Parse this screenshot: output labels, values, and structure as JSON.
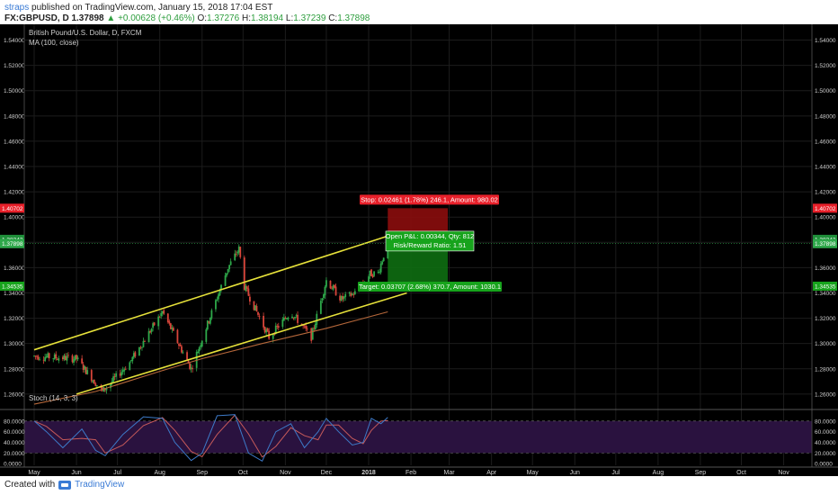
{
  "header": {
    "author": "straps",
    "published": "published on TradingView.com, January 15, 2018 17:04 EST",
    "symbol": "FX:GBPUSD, D",
    "price": "1.37898",
    "change": "▲ +0.00628 (+0.46%)",
    "o_label": "O:",
    "o_value": "1.37276",
    "h_label": "H:",
    "h_value": "1.38194",
    "l_label": "L:",
    "l_value": "1.37239",
    "c_label": "C:",
    "c_value": "1.37898"
  },
  "footer": {
    "created_with": "Created with",
    "brand": "TradingView"
  },
  "colors": {
    "background": "#000000",
    "up": "#2ea84a",
    "down": "#d8453a",
    "channel": "#e6e13a",
    "ma": "#b5673a",
    "stoch_fill": "#2a123f",
    "stoch_k": "#3d7ac8",
    "stoch_d": "#c65a5a",
    "stop_zone": "#8b0d0d",
    "target_zone": "#0e6e12",
    "label_red": "#e8202a",
    "label_green": "#17a31c"
  },
  "chart_data": [
    {
      "type": "candlestick",
      "title": "British Pound/U.S. Dollar, D, FXCM",
      "indicator_label": "MA (100, close)",
      "x_tick_labels": [
        "May",
        "Jun",
        "Jul",
        "Aug",
        "Sep",
        "Oct",
        "Nov",
        "Dec",
        "2018",
        "Feb",
        "Mar",
        "Apr",
        "May",
        "Jun",
        "Jul",
        "Aug",
        "Sep",
        "Oct",
        "Nov"
      ],
      "y_tick_labels": [
        "1.54000",
        "1.52000",
        "1.50000",
        "1.48000",
        "1.46000",
        "1.44000",
        "1.42000",
        "1.40000",
        "1.38000",
        "1.36000",
        "1.34000",
        "1.32000",
        "1.30000",
        "1.28000",
        "1.26000"
      ],
      "ylim": [
        1.2485,
        1.5525
      ],
      "marker_labels": [
        {
          "value": "1.40702",
          "kind": "stop"
        },
        {
          "value": "1.38242",
          "kind": "entry"
        },
        {
          "value": "1.37898",
          "kind": "current"
        },
        {
          "value": "1.34535",
          "kind": "target"
        }
      ],
      "key_points": [
        {
          "date": "2017-05-01",
          "close": 1.29
        },
        {
          "date": "2017-06-01",
          "close": 1.288
        },
        {
          "date": "2017-06-20",
          "close": 1.262
        },
        {
          "date": "2017-07-10",
          "close": 1.285
        },
        {
          "date": "2017-08-03",
          "close": 1.325
        },
        {
          "date": "2017-08-24",
          "close": 1.28
        },
        {
          "date": "2017-09-20",
          "close": 1.36
        },
        {
          "date": "2017-09-28",
          "close": 1.375
        },
        {
          "date": "2017-10-02",
          "close": 1.345
        },
        {
          "date": "2017-10-20",
          "close": 1.305
        },
        {
          "date": "2017-11-05",
          "close": 1.325
        },
        {
          "date": "2017-11-20",
          "close": 1.305
        },
        {
          "date": "2017-12-01",
          "close": 1.35
        },
        {
          "date": "2017-12-12",
          "close": 1.335
        },
        {
          "date": "2017-12-22",
          "close": 1.34
        },
        {
          "date": "2018-01-02",
          "close": 1.355
        },
        {
          "date": "2018-01-08",
          "close": 1.356
        },
        {
          "date": "2018-01-12",
          "close": 1.37
        },
        {
          "date": "2018-01-15",
          "close": 1.379
        }
      ],
      "moving_average": [
        {
          "date": "2017-05-01",
          "value": 1.252
        },
        {
          "date": "2017-06-15",
          "value": 1.262
        },
        {
          "date": "2017-08-01",
          "value": 1.278
        },
        {
          "date": "2017-09-01",
          "value": 1.288
        },
        {
          "date": "2017-10-15",
          "value": 1.3
        },
        {
          "date": "2017-12-01",
          "value": 1.312
        },
        {
          "date": "2018-01-15",
          "value": 1.325
        }
      ],
      "channel": {
        "upper": [
          {
            "date": "2017-05-01",
            "value": 1.295
          },
          {
            "date": "2018-01-15",
            "value": 1.385
          }
        ],
        "lower": [
          {
            "date": "2017-06-01",
            "value": 1.26
          },
          {
            "date": "2018-01-29",
            "value": 1.34
          }
        ]
      },
      "position": {
        "stop_text": "Stop: 0.02461 (1.78%) 246.1, Amount: 980.02",
        "pnl_text": "Open P&L: 0.00344, Qty: 812",
        "rr_text": "Risk/Reward Ratio: 1.51",
        "target_text": "Target: 0.03707 (2.68%) 370.7, Amount: 1030.1",
        "stop_price": 1.40702,
        "entry_price": 1.38242,
        "target_price": 1.34535,
        "start_date": "2018-01-15",
        "end_date": "2018-02-28"
      }
    },
    {
      "type": "line",
      "title": "Stoch (14, 3, 3)",
      "y_tick_labels": [
        "80.0000",
        "60.0000",
        "40.0000",
        "20.0000",
        "0.0000"
      ],
      "ylim": [
        -3,
        100
      ],
      "bands": [
        20,
        80
      ],
      "series": [
        {
          "values": [
            {
              "date": "2017-05-01",
              "k": 80
            },
            {
              "date": "2017-05-10",
              "k": 60
            },
            {
              "date": "2017-05-22",
              "k": 30
            },
            {
              "date": "2017-06-05",
              "k": 65
            },
            {
              "date": "2017-06-15",
              "k": 25
            },
            {
              "date": "2017-06-22",
              "k": 15
            },
            {
              "date": "2017-07-05",
              "k": 55
            },
            {
              "date": "2017-07-20",
              "k": 88
            },
            {
              "date": "2017-08-03",
              "k": 85
            },
            {
              "date": "2017-08-12",
              "k": 40
            },
            {
              "date": "2017-08-24",
              "k": 6
            },
            {
              "date": "2017-09-01",
              "k": 20
            },
            {
              "date": "2017-09-12",
              "k": 90
            },
            {
              "date": "2017-09-25",
              "k": 92
            },
            {
              "date": "2017-10-05",
              "k": 20
            },
            {
              "date": "2017-10-15",
              "k": 5
            },
            {
              "date": "2017-10-25",
              "k": 60
            },
            {
              "date": "2017-11-05",
              "k": 75
            },
            {
              "date": "2017-11-15",
              "k": 30
            },
            {
              "date": "2017-11-25",
              "k": 60
            },
            {
              "date": "2017-12-01",
              "k": 85
            },
            {
              "date": "2017-12-10",
              "k": 60
            },
            {
              "date": "2017-12-20",
              "k": 35
            },
            {
              "date": "2017-12-28",
              "k": 40
            },
            {
              "date": "2018-01-03",
              "k": 85
            },
            {
              "date": "2018-01-10",
              "k": 75
            },
            {
              "date": "2018-01-15",
              "k": 87
            }
          ]
        }
      ]
    }
  ]
}
